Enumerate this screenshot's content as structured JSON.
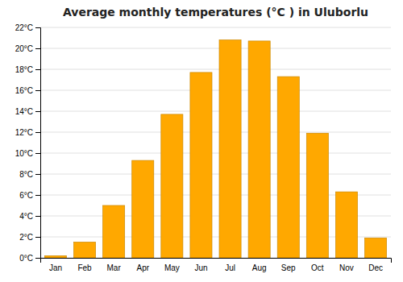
{
  "chart_data": {
    "type": "bar",
    "title": "Average monthly temperatures (°C ) in Uluborlu",
    "categories": [
      "Jan",
      "Feb",
      "Mar",
      "Apr",
      "May",
      "Jun",
      "Jul",
      "Aug",
      "Sep",
      "Oct",
      "Nov",
      "Dec"
    ],
    "values": [
      0.2,
      1.5,
      5.0,
      9.3,
      13.7,
      17.7,
      20.8,
      20.7,
      17.3,
      11.9,
      6.3,
      1.9
    ],
    "color": "#FFA800",
    "ylim": [
      0,
      22
    ],
    "yticks": [
      {
        "value": 0,
        "label": "0°C"
      },
      {
        "value": 2,
        "label": "2°C"
      },
      {
        "value": 4,
        "label": "4°C"
      },
      {
        "value": 6,
        "label": "6°C"
      },
      {
        "value": 8,
        "label": "8°C"
      },
      {
        "value": 10,
        "label": "10°C"
      },
      {
        "value": 12,
        "label": "12°C"
      },
      {
        "value": 14,
        "label": "14°C"
      },
      {
        "value": 16,
        "label": "16°C"
      },
      {
        "value": 18,
        "label": "18°C"
      },
      {
        "value": 20,
        "label": "20°C"
      },
      {
        "value": 22,
        "label": "22°C"
      }
    ],
    "grid": true
  }
}
